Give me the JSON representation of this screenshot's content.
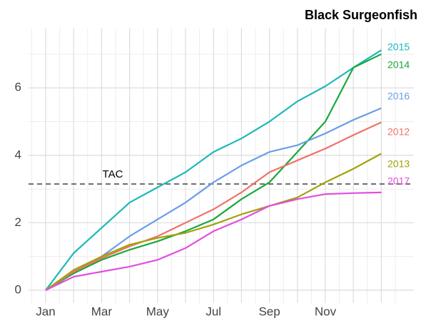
{
  "chart_data": {
    "type": "line",
    "title": "Black Surgeonfish",
    "categories": [
      "Jan",
      null,
      "Mar",
      null,
      "May",
      null,
      "Jul",
      null,
      "Sep",
      null,
      "Nov",
      null,
      null
    ],
    "series": [
      {
        "name": "2015",
        "color": "#1cb8b8",
        "values": [
          0,
          1.1,
          1.85,
          2.6,
          3.05,
          3.5,
          4.1,
          4.5,
          5.0,
          5.6,
          6.05,
          6.6,
          7.12
        ]
      },
      {
        "name": "2014",
        "color": "#19a83c",
        "values": [
          0,
          0.5,
          0.9,
          1.2,
          1.45,
          1.75,
          2.1,
          2.7,
          3.2,
          4.1,
          5.0,
          6.6,
          7.0
        ]
      },
      {
        "name": "2016",
        "color": "#6a9ee8",
        "values": [
          0,
          0.55,
          1.0,
          1.6,
          2.1,
          2.6,
          3.2,
          3.7,
          4.1,
          4.3,
          4.65,
          5.05,
          5.4
        ]
      },
      {
        "name": "2012",
        "color": "#ef7268",
        "values": [
          0,
          0.55,
          0.95,
          1.3,
          1.6,
          2.0,
          2.4,
          2.9,
          3.5,
          3.85,
          4.2,
          4.6,
          4.98
        ]
      },
      {
        "name": "2013",
        "color": "#a3a10a",
        "values": [
          0,
          0.6,
          1.0,
          1.35,
          1.55,
          1.7,
          1.95,
          2.25,
          2.5,
          2.75,
          3.2,
          3.6,
          4.05
        ]
      },
      {
        "name": "2017",
        "color": "#e04fe0",
        "values": [
          0,
          0.4,
          0.55,
          0.7,
          0.9,
          1.25,
          1.75,
          2.1,
          2.5,
          2.7,
          2.85,
          2.88,
          2.9
        ]
      }
    ],
    "ylim": [
      -0.38,
      7.76
    ],
    "yticks": [
      0,
      2,
      4,
      6
    ],
    "grid": true,
    "reference_line": {
      "label": "TAC",
      "value": 3.15
    }
  }
}
